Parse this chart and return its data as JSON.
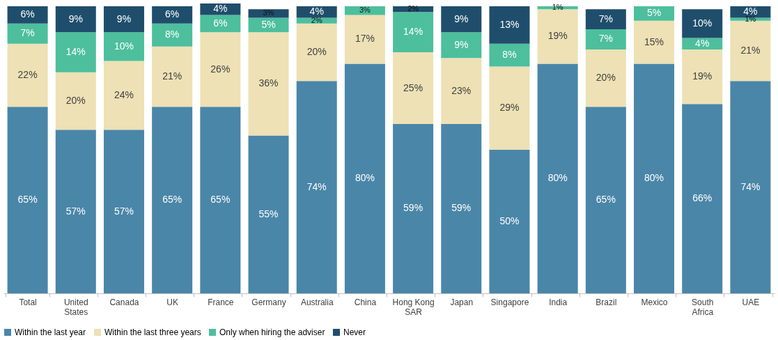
{
  "chart_data": {
    "type": "bar",
    "stacked": true,
    "legend": "bottom",
    "categories": [
      "Total",
      "United States",
      "Canada",
      "UK",
      "France",
      "Germany",
      "Australia",
      "China",
      "Hong Kong SAR",
      "Japan",
      "Singapore",
      "India",
      "Brazil",
      "Mexico",
      "South Africa",
      "UAE"
    ],
    "series": [
      {
        "name": "Within the last year",
        "color": "#4a86a8",
        "values": [
          65,
          57,
          57,
          65,
          65,
          55,
          74,
          80,
          59,
          59,
          50,
          80,
          65,
          80,
          66,
          74
        ],
        "value_labels": [
          "65%",
          "57%",
          "57%",
          "65%",
          "65%",
          "55%",
          "74%",
          "80%",
          "59%",
          "59%",
          "50%",
          "80%",
          "65%",
          "80%",
          "66%",
          "74%"
        ]
      },
      {
        "name": "Within the last three years",
        "color": "#ede1b5",
        "values": [
          22,
          20,
          24,
          21,
          26,
          36,
          20,
          17,
          25,
          23,
          29,
          19,
          20,
          15,
          19,
          21
        ],
        "value_labels": [
          "22%",
          "20%",
          "24%",
          "21%",
          "26%",
          "36%",
          "20%",
          "17%",
          "25%",
          "23%",
          "29%",
          "19%",
          "20%",
          "15%",
          "19%",
          "21%"
        ]
      },
      {
        "name": "Only when hiring the adviser",
        "color": "#4dbf9c",
        "values": [
          7,
          14,
          10,
          8,
          6,
          5,
          2,
          3,
          14,
          9,
          8,
          1,
          7,
          5,
          4,
          1
        ],
        "value_labels": [
          "7%",
          "14%",
          "10%",
          "8%",
          "6%",
          "5%",
          "2%",
          "3%",
          "14%",
          "9%",
          "8%",
          "1%",
          "7%",
          "5%",
          "4%",
          "1%"
        ]
      },
      {
        "name": "Never",
        "color": "#1f4e6c",
        "values": [
          6,
          9,
          9,
          6,
          4,
          3,
          4,
          null,
          2,
          9,
          13,
          null,
          7,
          null,
          10,
          4
        ],
        "value_labels": [
          "6%",
          "9%",
          "9%",
          "6%",
          "4%",
          "3%",
          "4%",
          null,
          "2%",
          "9%",
          "13%",
          null,
          "7%",
          null,
          "10%",
          "4%"
        ]
      }
    ]
  }
}
